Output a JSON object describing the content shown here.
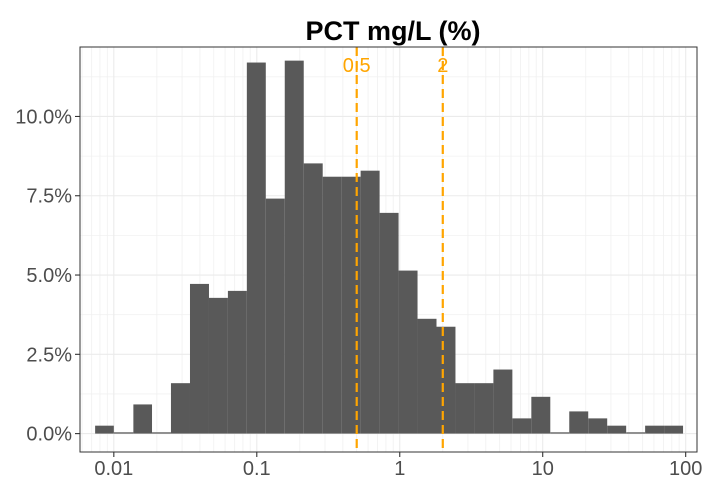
{
  "chart_data": {
    "type": "bar",
    "title": "PCT mg/L (%)",
    "xlabel": "",
    "ylabel": "",
    "x_scale": "log10",
    "xlim": [
      0.0058,
      120
    ],
    "ylim": [
      -0.0058,
      0.1219
    ],
    "x_ticks": [
      {
        "value": 0.01,
        "label": "0.01"
      },
      {
        "value": 0.1,
        "label": "0.1"
      },
      {
        "value": 1,
        "label": "1"
      },
      {
        "value": 10,
        "label": "10"
      },
      {
        "value": 100,
        "label": "100"
      }
    ],
    "y_ticks": [
      {
        "value": 0.0,
        "label": "0.0%"
      },
      {
        "value": 0.025,
        "label": "2.5%"
      },
      {
        "value": 0.05,
        "label": "5.0%"
      },
      {
        "value": 0.075,
        "label": "7.5%"
      },
      {
        "value": 0.1,
        "label": "10.0%"
      }
    ],
    "bins": [
      {
        "x0": 0.0074,
        "x1": 0.01,
        "value": 0.0025
      },
      {
        "x0": 0.01,
        "x1": 0.0137,
        "value": 0.0004
      },
      {
        "x0": 0.0137,
        "x1": 0.0185,
        "value": 0.0092
      },
      {
        "x0": 0.0185,
        "x1": 0.0251,
        "value": 0.0004
      },
      {
        "x0": 0.0251,
        "x1": 0.0341,
        "value": 0.0159
      },
      {
        "x0": 0.0341,
        "x1": 0.0463,
        "value": 0.0472
      },
      {
        "x0": 0.0463,
        "x1": 0.0628,
        "value": 0.0428
      },
      {
        "x0": 0.0628,
        "x1": 0.0852,
        "value": 0.045
      },
      {
        "x0": 0.0852,
        "x1": 0.1156,
        "value": 0.117
      },
      {
        "x0": 0.1156,
        "x1": 0.1569,
        "value": 0.0741
      },
      {
        "x0": 0.1569,
        "x1": 0.213,
        "value": 0.1176
      },
      {
        "x0": 0.213,
        "x1": 0.2891,
        "value": 0.0852
      },
      {
        "x0": 0.2891,
        "x1": 0.3924,
        "value": 0.081
      },
      {
        "x0": 0.3924,
        "x1": 0.5326,
        "value": 0.081
      },
      {
        "x0": 0.5326,
        "x1": 0.7229,
        "value": 0.0829
      },
      {
        "x0": 0.7229,
        "x1": 0.9811,
        "value": 0.0696
      },
      {
        "x0": 0.9811,
        "x1": 1.3316,
        "value": 0.0514
      },
      {
        "x0": 1.3316,
        "x1": 1.8073,
        "value": 0.0362
      },
      {
        "x0": 1.8073,
        "x1": 2.453,
        "value": 0.0337
      },
      {
        "x0": 2.453,
        "x1": 3.3294,
        "value": 0.0159
      },
      {
        "x0": 3.3294,
        "x1": 4.5189,
        "value": 0.0159
      },
      {
        "x0": 4.5189,
        "x1": 6.1333,
        "value": 0.0202
      },
      {
        "x0": 6.1333,
        "x1": 8.3245,
        "value": 0.0048
      },
      {
        "x0": 8.3245,
        "x1": 11.298,
        "value": 0.0116
      },
      {
        "x0": 11.298,
        "x1": 15.335,
        "value": 0.0004
      },
      {
        "x0": 15.335,
        "x1": 20.813,
        "value": 0.007
      },
      {
        "x0": 20.813,
        "x1": 28.249,
        "value": 0.0048
      },
      {
        "x0": 28.249,
        "x1": 38.341,
        "value": 0.0025
      },
      {
        "x0": 38.341,
        "x1": 52.039,
        "value": 0.0004
      },
      {
        "x0": 52.039,
        "x1": 70.63,
        "value": 0.0025
      },
      {
        "x0": 70.63,
        "x1": 95.864,
        "value": 0.0025
      }
    ],
    "bar_color": "#595959",
    "reference_lines": [
      {
        "value": 0.5,
        "label": "0.5",
        "color": "#FFA500"
      },
      {
        "value": 2,
        "label": "2",
        "color": "#FFA500"
      }
    ],
    "grid": true,
    "legend": "none"
  }
}
